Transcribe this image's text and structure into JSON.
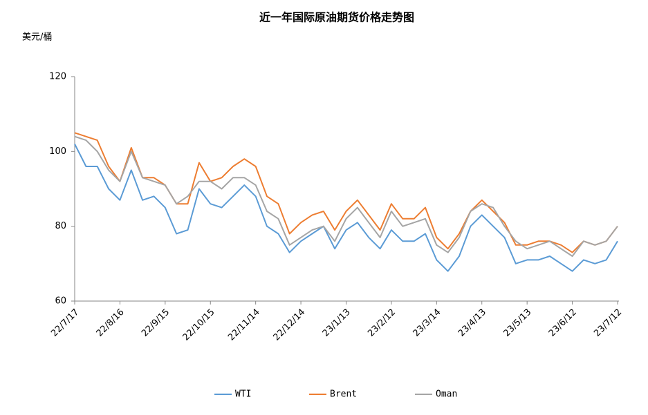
{
  "chart_data": {
    "type": "line",
    "title": "近一年国际原油期货价格走势图",
    "y_label": "美元/桶",
    "categories": [
      "22/7/17",
      null,
      null,
      null,
      "22/8/16",
      null,
      null,
      null,
      "22/9/15",
      null,
      null,
      null,
      "22/10/15",
      null,
      null,
      null,
      "22/11/14",
      null,
      null,
      null,
      "22/12/14",
      null,
      null,
      null,
      "23/1/13",
      null,
      null,
      null,
      "23/2/12",
      null,
      null,
      null,
      "23/3/14",
      null,
      null,
      null,
      "23/4/13",
      null,
      null,
      null,
      "23/5/13",
      null,
      null,
      null,
      "23/6/12",
      null,
      null,
      null,
      "23/7/12"
    ],
    "series": [
      {
        "name": "WTI",
        "color": "#5b9bd5",
        "values": [
          102,
          96,
          96,
          90,
          87,
          95,
          87,
          88,
          85,
          78,
          79,
          90,
          86,
          85,
          88,
          91,
          88,
          80,
          78,
          73,
          76,
          78,
          80,
          74,
          79,
          81,
          77,
          74,
          79,
          76,
          76,
          78,
          71,
          68,
          72,
          80,
          83,
          80,
          77,
          70,
          71,
          71,
          72,
          70,
          68,
          71,
          70,
          71,
          76
        ]
      },
      {
        "name": "Brent",
        "color": "#ed7d31",
        "values": [
          105,
          104,
          103,
          96,
          92,
          101,
          93,
          93,
          91,
          86,
          86,
          97,
          92,
          93,
          96,
          98,
          96,
          88,
          86,
          78,
          81,
          83,
          84,
          79,
          84,
          87,
          83,
          79,
          86,
          82,
          82,
          85,
          77,
          74,
          78,
          84,
          87,
          84,
          81,
          75,
          75,
          76,
          76,
          75,
          73,
          76,
          75,
          76,
          80
        ]
      },
      {
        "name": "Oman",
        "color": "#a5a5a5",
        "values": [
          104,
          103,
          100,
          95,
          92,
          100,
          93,
          92,
          91,
          86,
          88,
          92,
          92,
          90,
          93,
          93,
          91,
          84,
          82,
          75,
          77,
          79,
          80,
          76,
          82,
          85,
          81,
          77,
          84,
          80,
          81,
          82,
          75,
          73,
          77,
          84,
          86,
          85,
          80,
          76,
          74,
          75,
          76,
          74,
          72,
          76,
          75,
          76,
          80
        ]
      }
    ],
    "ylim": [
      60,
      120
    ],
    "yticks": [
      60,
      80,
      100,
      120
    ],
    "grid": false,
    "legend": "bottom"
  }
}
